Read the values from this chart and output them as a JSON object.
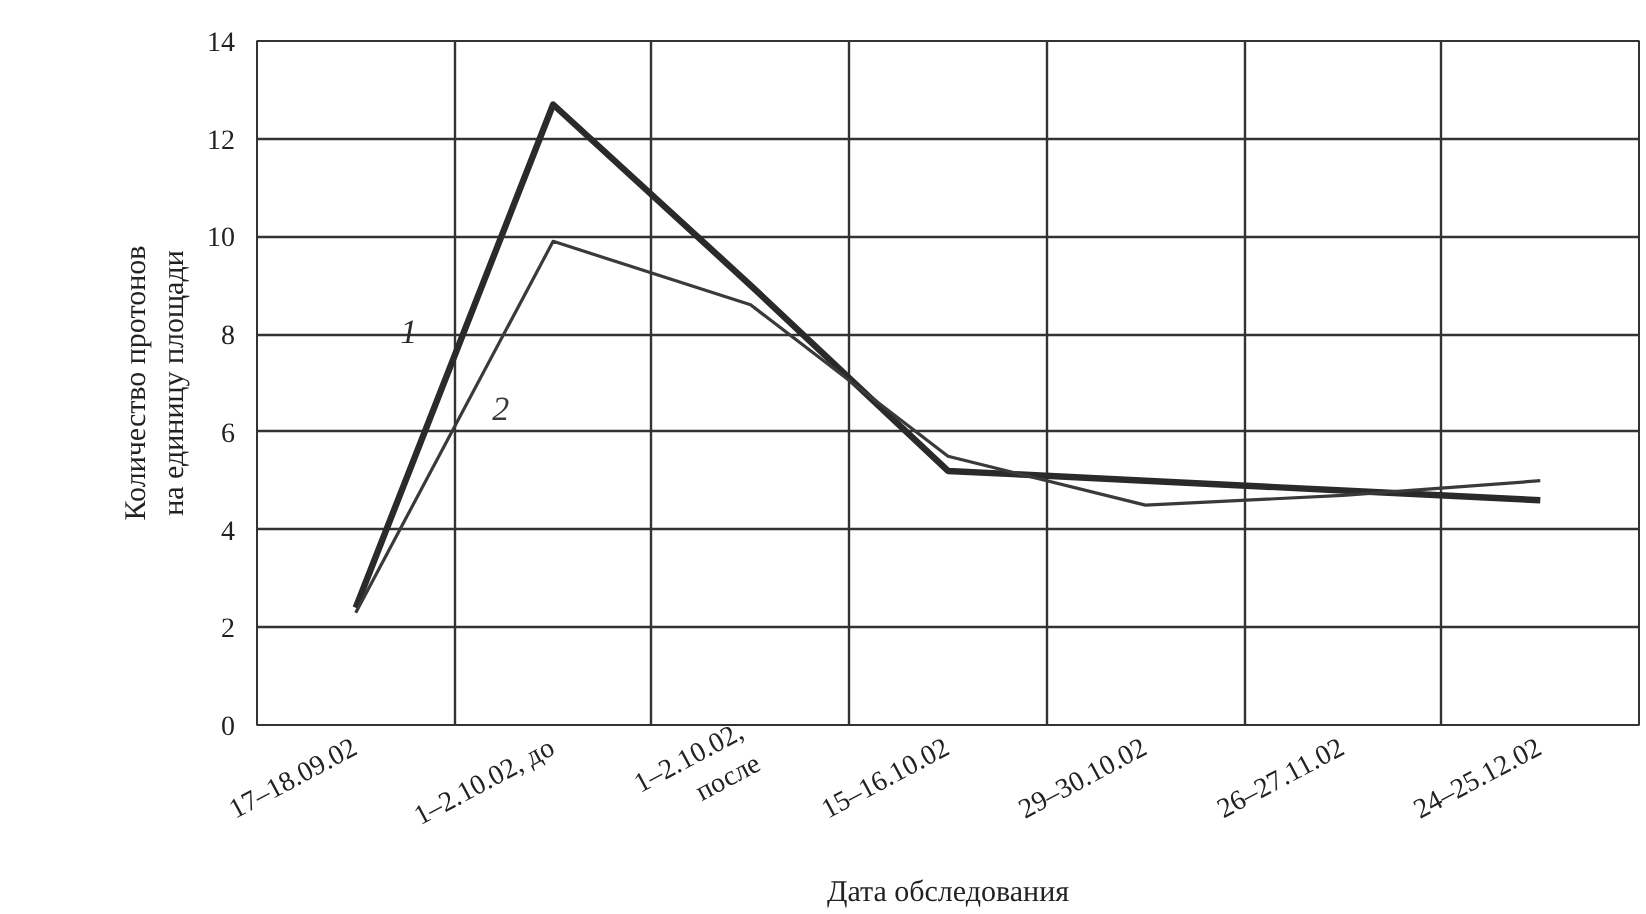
{
  "chart_data": {
    "type": "line",
    "xlabel": "Дата обследования",
    "ylabel": "Количество протонов\nна единицу площади",
    "categories": [
      "17–18.09.02",
      "1–2.10.02, до",
      "1–2.10.02,\nпосле",
      "15–16.10.02",
      "29–30.10.02",
      "26–27.11.02",
      "24–25.12.02"
    ],
    "series": [
      {
        "name": "1",
        "color": "#2a2a2a",
        "values": [
          2.4,
          12.7,
          9.0,
          5.2,
          5.0,
          4.8,
          4.6
        ]
      },
      {
        "name": "2",
        "color": "#3a3a3a",
        "values": [
          2.3,
          9.9,
          8.6,
          5.5,
          4.5,
          4.7,
          5.0
        ]
      }
    ],
    "ylim": [
      0,
      14
    ],
    "yticks": [
      0,
      2,
      4,
      6,
      8,
      10,
      12,
      14
    ],
    "grid": true,
    "marker": "none",
    "line_style": "solid"
  }
}
